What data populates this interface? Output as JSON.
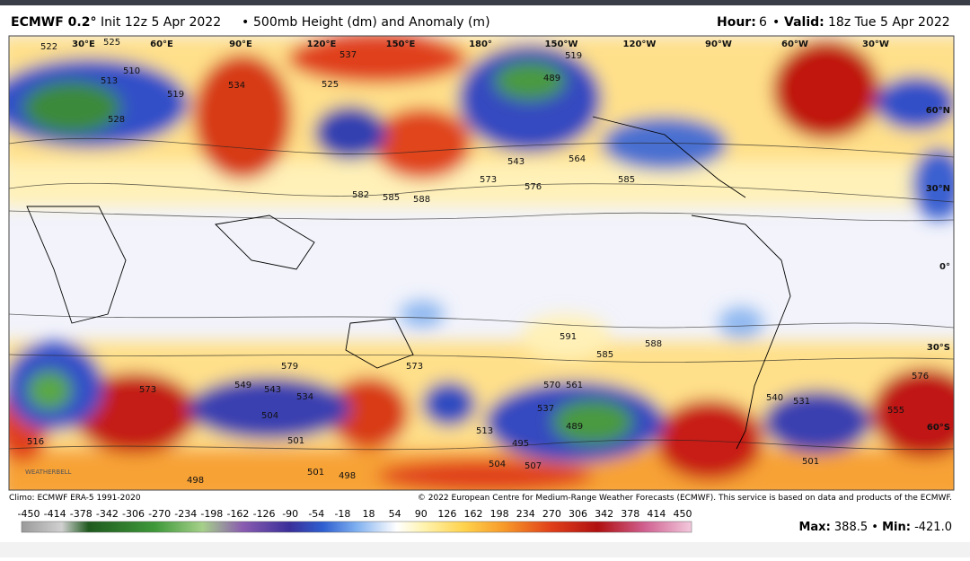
{
  "header": {
    "model": "ECMWF 0.2°",
    "init": "Init 12z 5 Apr 2022",
    "separator": "•",
    "product": "500mb Height (dm) and Anomaly (m)",
    "hour_label": "Hour:",
    "hour": "6",
    "valid_label": "Valid:",
    "valid": "18z Tue 5 Apr 2022"
  },
  "map": {
    "longitudes": [
      "30°E",
      "60°E",
      "90°E",
      "120°E",
      "150°E",
      "180°",
      "150°W",
      "120°W",
      "90°W",
      "60°W",
      "30°W"
    ],
    "latitudes": [
      "60°N",
      "30°N",
      "0°",
      "30°S",
      "60°S"
    ],
    "contour_labels": [
      "522",
      "525",
      "537",
      "534",
      "525",
      "510",
      "513",
      "519",
      "528",
      "519",
      "489",
      "573",
      "543",
      "576",
      "564",
      "585",
      "582",
      "585",
      "588",
      "573",
      "591",
      "588",
      "585",
      "579",
      "573",
      "549",
      "543",
      "534",
      "504",
      "501",
      "570",
      "561",
      "537",
      "489",
      "495",
      "513",
      "504",
      "507",
      "498",
      "501",
      "498",
      "540",
      "531",
      "555",
      "576",
      "501",
      "516"
    ],
    "watermark": "WEATHERBELL"
  },
  "footer": {
    "climo": "Climo: ECMWF ERA-5 1991-2020",
    "copyright": "© 2022 European Centre for Medium-Range Weather Forecasts (ECMWF). This service is based on data and products of the ECMWF."
  },
  "colorbar": {
    "labels": [
      "-450",
      "-414",
      "-378",
      "-342",
      "-306",
      "-270",
      "-234",
      "-198",
      "-162",
      "-126",
      "-90",
      "-54",
      "-18",
      "18",
      "54",
      "90",
      "126",
      "162",
      "198",
      "234",
      "270",
      "306",
      "342",
      "378",
      "414",
      "450"
    ]
  },
  "stats": {
    "max_label": "Max:",
    "max": "388.5",
    "min_label": "Min:",
    "min": "-421.0"
  }
}
